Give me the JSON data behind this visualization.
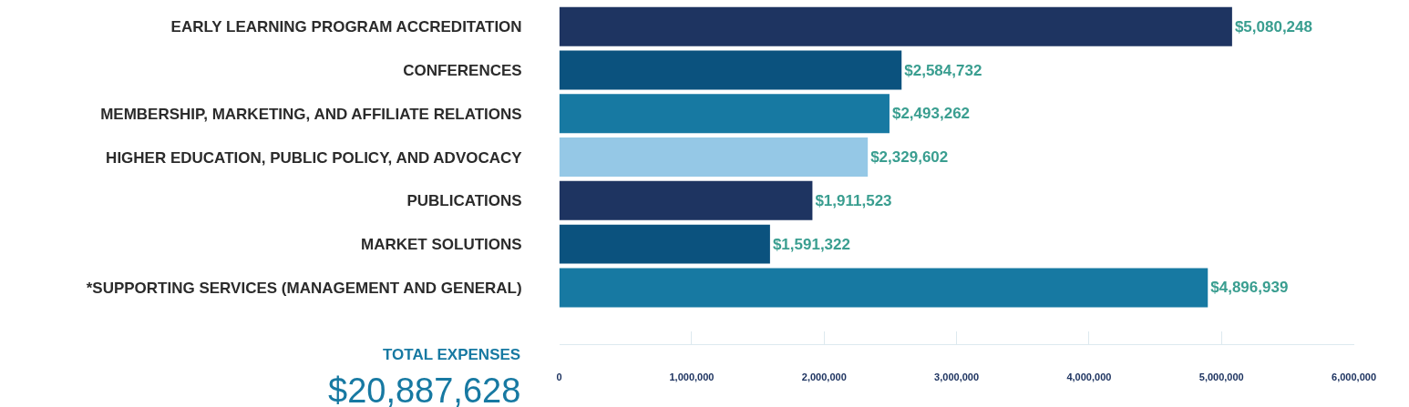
{
  "chart_data": {
    "type": "bar",
    "orientation": "horizontal",
    "categories": [
      "EARLY LEARNING PROGRAM ACCREDITATION",
      "CONFERENCES",
      "MEMBERSHIP, MARKETING, AND AFFILIATE RELATIONS",
      "HIGHER EDUCATION, PUBLIC POLICY, AND ADVOCACY",
      "PUBLICATIONS",
      "MARKET SOLUTIONS",
      "*SUPPORTING SERVICES (MANAGEMENT AND GENERAL)"
    ],
    "values": [
      5080248,
      2584732,
      2493262,
      2329602,
      1911523,
      1591322,
      4896939
    ],
    "value_labels": [
      "$5,080,248",
      "$2,584,732",
      "$2,493,262",
      "$2,329,602",
      "$1,911,523",
      "$1,591,322",
      "$4,896,939"
    ],
    "colors": [
      "#1e3461",
      "#0b527e",
      "#1779a2",
      "#95c8e6",
      "#1e3461",
      "#0b527e",
      "#1779a2"
    ],
    "xlim": [
      0,
      6000000
    ],
    "xticks": [
      0,
      {
        "value": 1000000,
        "label": "1,000,000"
      },
      {
        "value": 2000000,
        "label": "2,000,000"
      },
      {
        "value": 3000000,
        "label": "3,000,000"
      },
      {
        "value": 4000000,
        "label": "4,000,000"
      },
      {
        "value": 5000000,
        "label": "5,000,000"
      },
      {
        "value": 6000000,
        "label": "6,000,000"
      }
    ],
    "legend": false,
    "annotations": [
      "TOTAL EXPENSES",
      "$20,887,628"
    ]
  }
}
